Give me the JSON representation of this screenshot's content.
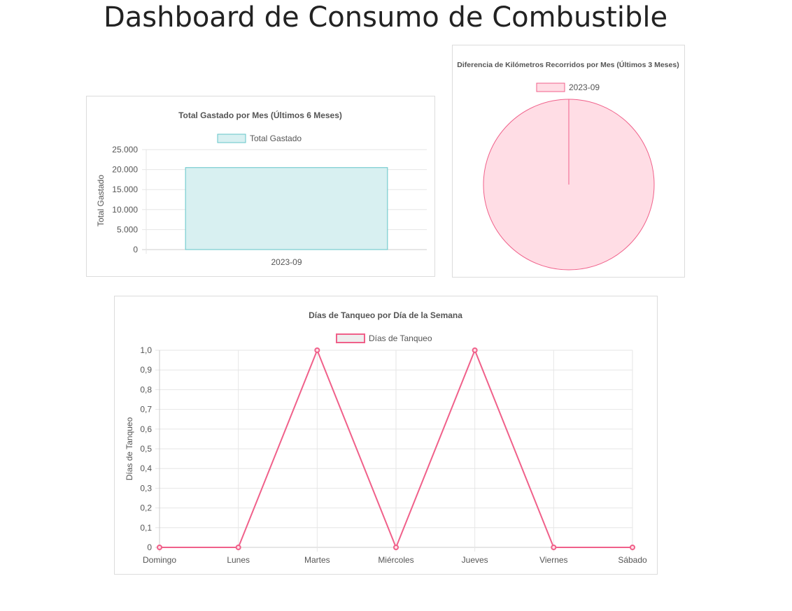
{
  "page": {
    "title": "Dashboard de Consumo de Combustible"
  },
  "colors": {
    "teal_fill": "#d8f0f1",
    "teal_stroke": "#62c5c8",
    "pink_fill": "#ffdde5",
    "pink_stroke": "#f0608a",
    "grid": "#e6e6e6",
    "axis": "#cccccc"
  },
  "chart_data": [
    {
      "id": "bar",
      "type": "bar",
      "title": "Total Gastado por Mes (Últimos 6 Meses)",
      "legend": [
        "Total Gastado"
      ],
      "ylabel": "Total Gastado",
      "xlabel": "",
      "categories": [
        "2023-09"
      ],
      "series": [
        {
          "name": "Total Gastado",
          "values": [
            20500
          ]
        }
      ],
      "ylim": [
        0,
        25000
      ],
      "yticks": [
        "0",
        "5.000",
        "10.000",
        "15.000",
        "20.000",
        "25.000"
      ],
      "grid": true,
      "legend_position": "top"
    },
    {
      "id": "pie",
      "type": "pie",
      "title": "Diferencia de Kilómetros Recorridos por Mes (Últimos 3 Meses)",
      "legend": [
        "2023-09"
      ],
      "labels": [
        "2023-09"
      ],
      "values": [
        100
      ],
      "legend_position": "top"
    },
    {
      "id": "line",
      "type": "line",
      "title": "Días de Tanqueo por Día de la Semana",
      "legend": [
        "Días de Tanqueo"
      ],
      "ylabel": "Días de Tanqueo",
      "xlabel": "",
      "categories": [
        "Domingo",
        "Lunes",
        "Martes",
        "Miércoles",
        "Jueves",
        "Viernes",
        "Sábado"
      ],
      "series": [
        {
          "name": "Días de Tanqueo",
          "values": [
            0,
            0,
            1,
            0,
            1,
            0,
            0
          ]
        }
      ],
      "ylim": [
        0,
        1
      ],
      "yticks": [
        "0",
        "0,1",
        "0,2",
        "0,3",
        "0,4",
        "0,5",
        "0,6",
        "0,7",
        "0,8",
        "0,9",
        "1,0"
      ],
      "grid": true,
      "legend_position": "top"
    }
  ]
}
